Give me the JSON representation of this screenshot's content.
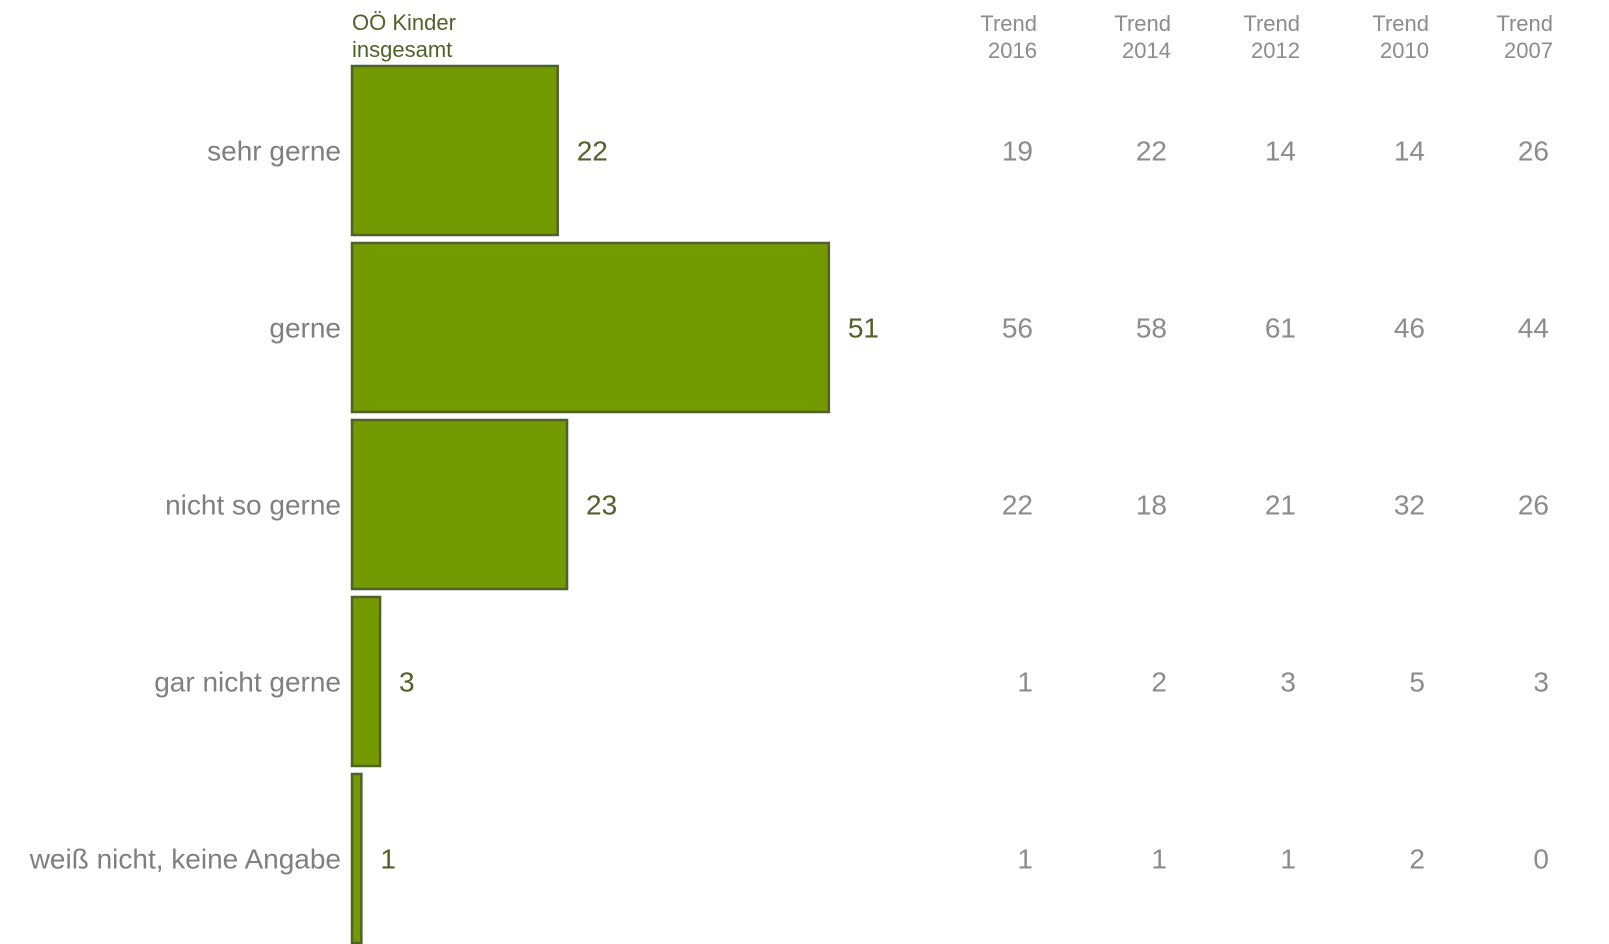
{
  "chart_data": {
    "type": "bar",
    "orientation": "horizontal",
    "series_header": [
      "OÖ Kinder",
      "insgesamt"
    ],
    "categories": [
      "sehr gerne",
      "gerne",
      "nicht so gerne",
      "gar nicht gerne",
      "weiß nicht, keine Angabe"
    ],
    "values": [
      22,
      51,
      23,
      3,
      1
    ],
    "bar_color": "#739a00",
    "bar_stroke": "#4f6228",
    "trend_columns": [
      {
        "label": [
          "Trend",
          "2016"
        ],
        "values": [
          19,
          56,
          22,
          1,
          1
        ]
      },
      {
        "label": [
          "Trend",
          "2014"
        ],
        "values": [
          22,
          58,
          18,
          2,
          1
        ]
      },
      {
        "label": [
          "Trend",
          "2012"
        ],
        "values": [
          14,
          61,
          21,
          3,
          1
        ]
      },
      {
        "label": [
          "Trend",
          "2010"
        ],
        "values": [
          14,
          46,
          32,
          5,
          2
        ]
      },
      {
        "label": [
          "Trend",
          "2007"
        ],
        "values": [
          26,
          44,
          26,
          3,
          0
        ]
      }
    ]
  }
}
